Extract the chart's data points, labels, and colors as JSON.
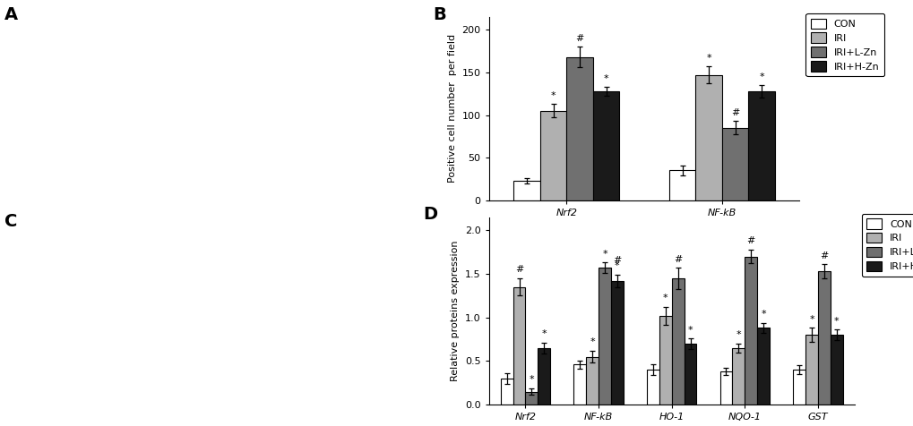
{
  "B": {
    "title": "B",
    "groups": [
      "Nrf2",
      "NF-kB"
    ],
    "series_labels": [
      "CON",
      "IRI",
      "IRI+L-Zn",
      "IRI+H-Zn"
    ],
    "colors": [
      "white",
      "#b0b0b0",
      "#707070",
      "#1a1a1a"
    ],
    "edgecolor": "black",
    "values": [
      [
        23,
        105,
        168,
        128
      ],
      [
        35,
        147,
        85,
        128
      ]
    ],
    "errors": [
      [
        3,
        8,
        12,
        5
      ],
      [
        6,
        10,
        8,
        7
      ]
    ],
    "annotations": [
      [
        "",
        "*",
        "#",
        "*"
      ],
      [
        "",
        "*",
        "#",
        "*"
      ]
    ],
    "ylabel": "Positive cell number  per field",
    "ylim": [
      0,
      215
    ],
    "yticks": [
      0,
      50,
      100,
      150,
      200
    ]
  },
  "D": {
    "title": "D",
    "groups": [
      "Nrf2",
      "NF-kB",
      "HO-1",
      "NQO-1",
      "GST"
    ],
    "series_labels": [
      "CON",
      "IRI",
      "IRI+L-Zn",
      "IRI+H-Zn"
    ],
    "colors": [
      "white",
      "#b0b0b0",
      "#707070",
      "#1a1a1a"
    ],
    "edgecolor": "black",
    "values": [
      [
        0.3,
        1.35,
        0.15,
        0.65
      ],
      [
        0.46,
        0.55,
        1.57,
        1.42
      ],
      [
        0.4,
        1.02,
        1.45,
        0.7
      ],
      [
        0.38,
        0.65,
        1.7,
        0.88
      ],
      [
        0.4,
        0.8,
        1.53,
        0.8
      ]
    ],
    "errors": [
      [
        0.06,
        0.1,
        0.04,
        0.06
      ],
      [
        0.05,
        0.07,
        0.06,
        0.07
      ],
      [
        0.06,
        0.1,
        0.12,
        0.06
      ],
      [
        0.04,
        0.05,
        0.08,
        0.06
      ],
      [
        0.05,
        0.08,
        0.08,
        0.06
      ]
    ],
    "annotations": [
      [
        "",
        "#",
        "*",
        "*"
      ],
      [
        "",
        "*",
        "*",
        "*\n#"
      ],
      [
        "",
        "*",
        "#",
        "*"
      ],
      [
        "",
        "*",
        "#",
        "*"
      ],
      [
        "",
        "*",
        "#",
        "*"
      ]
    ],
    "ylabel": "Relative proteins expression",
    "ylim": [
      0,
      2.15
    ],
    "yticks": [
      0.0,
      0.5,
      1.0,
      1.5,
      2.0
    ]
  },
  "fig_width": 10.2,
  "fig_height": 4.76,
  "dpi": 100
}
